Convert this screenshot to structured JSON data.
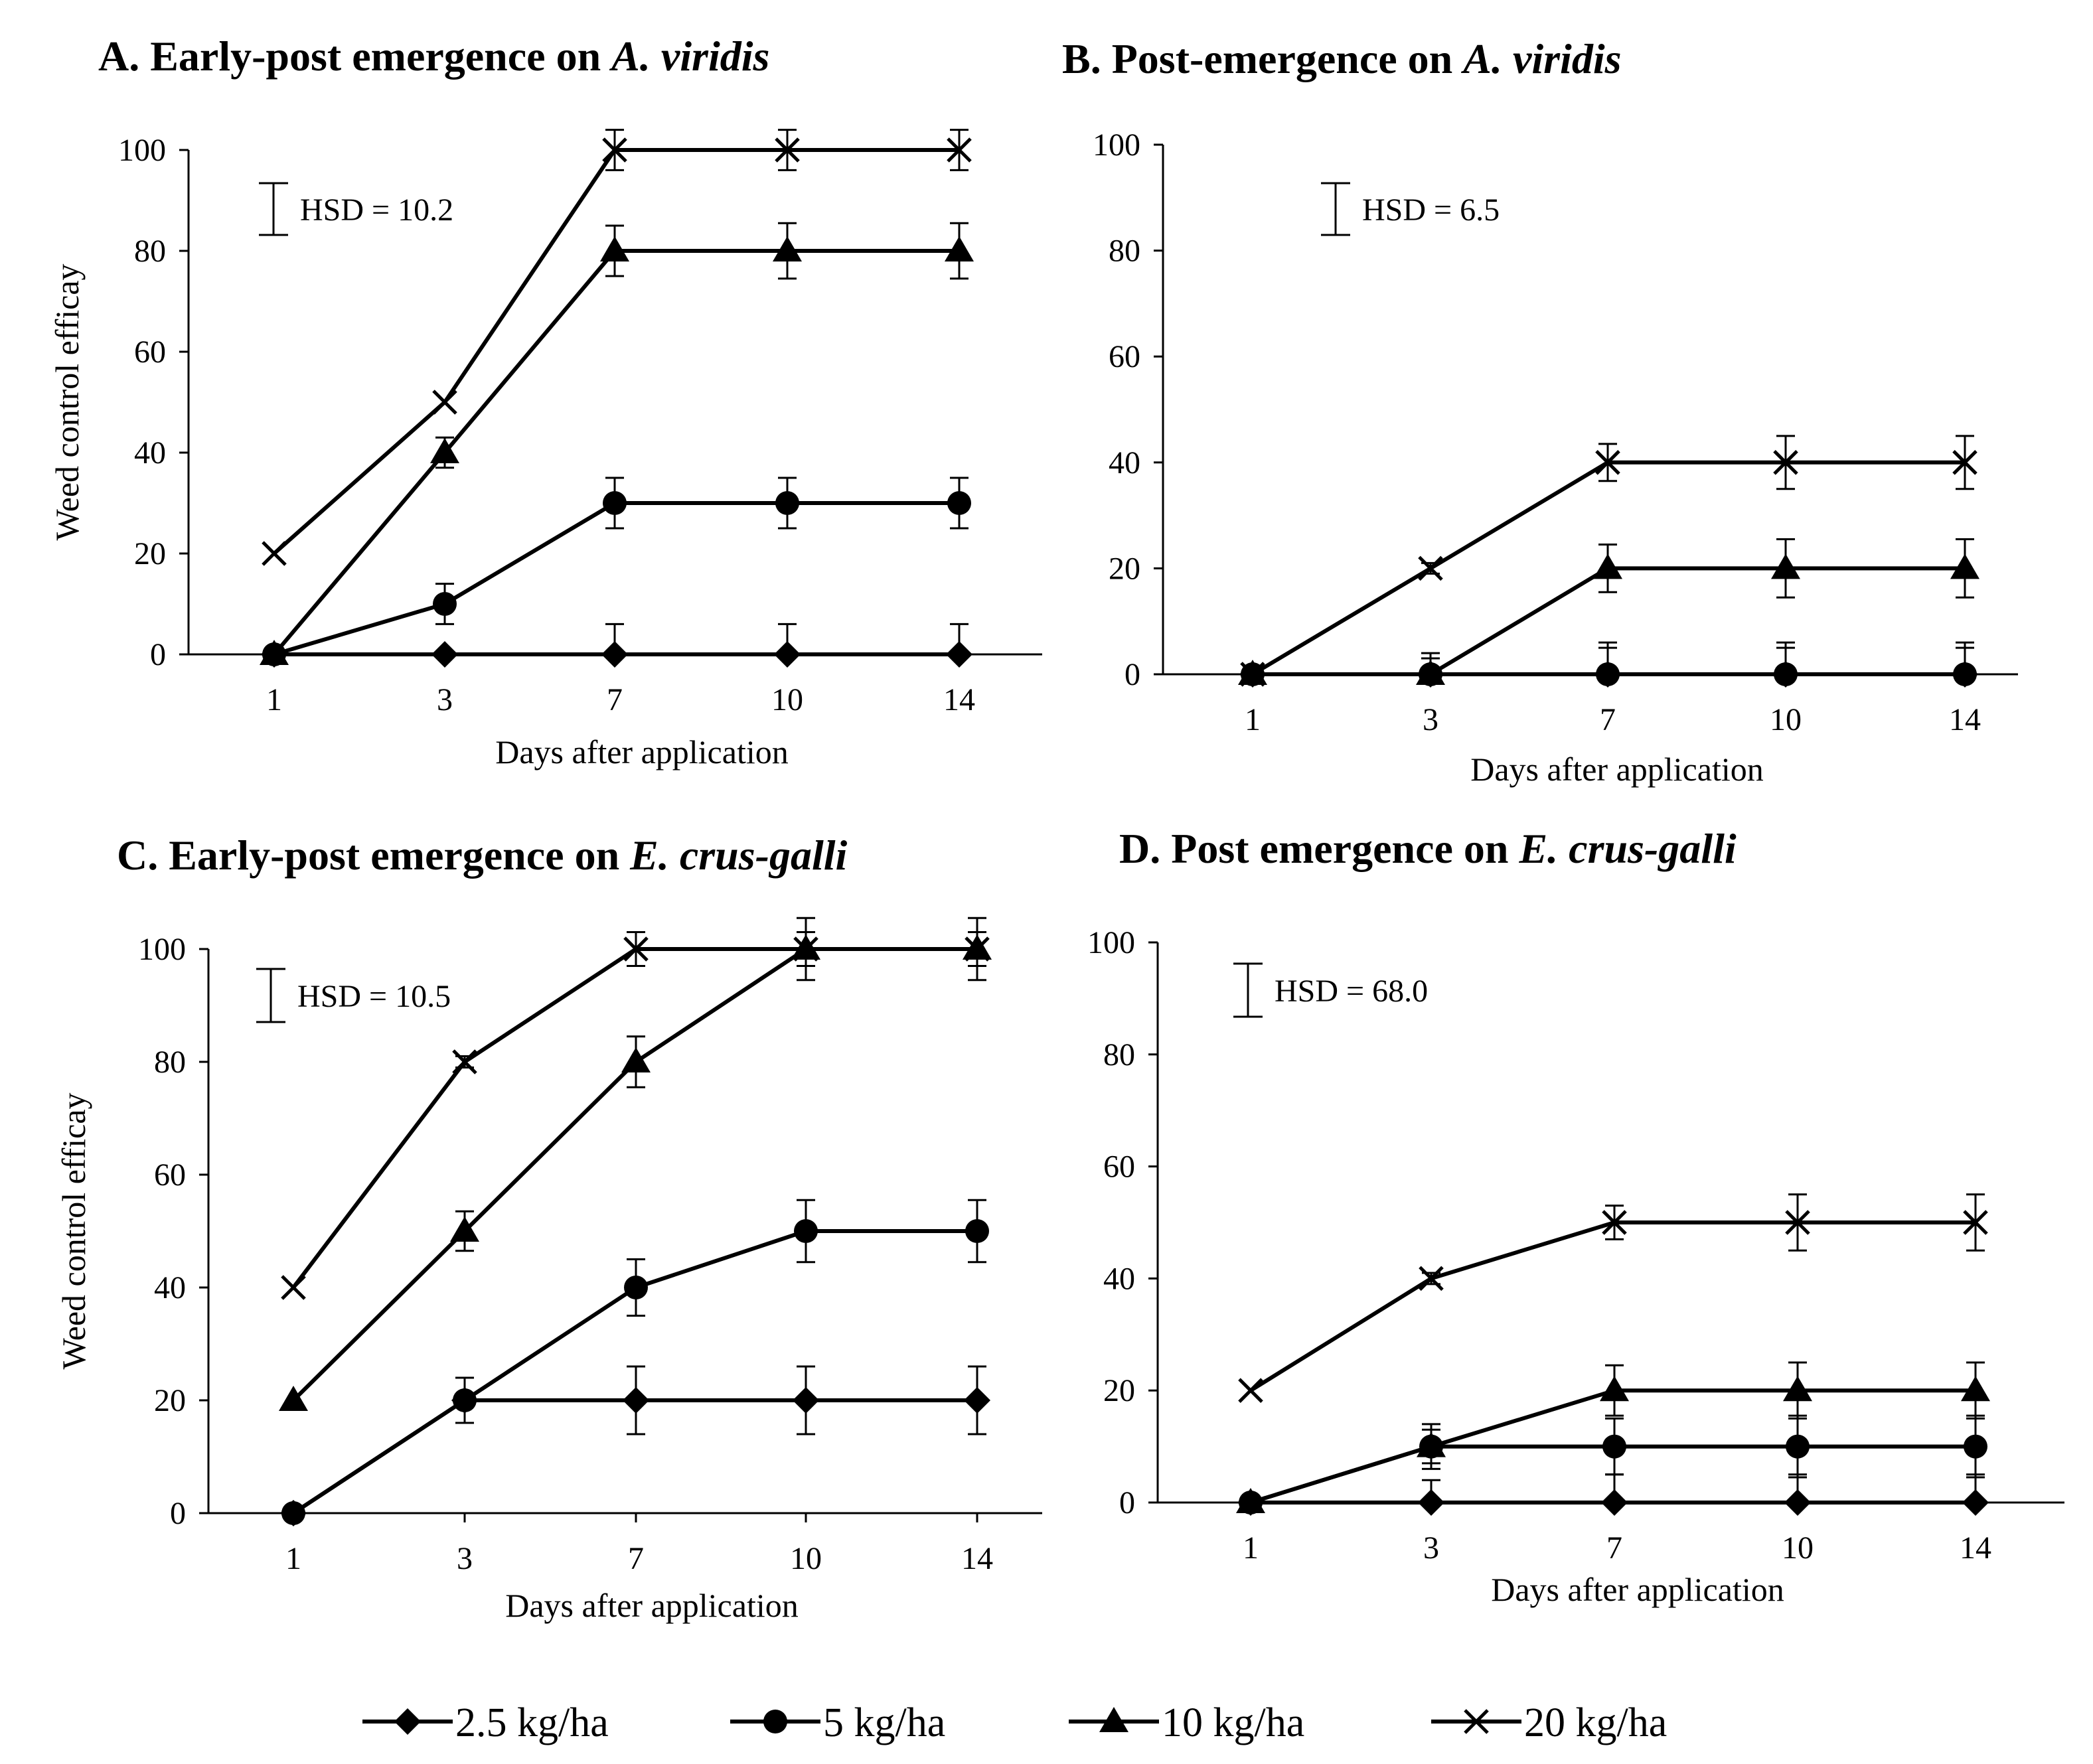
{
  "legend": [
    "2.5 kg/ha",
    "5 kg/ha",
    "10 kg/ha",
    "20 kg/ha"
  ],
  "chart_data": [
    {
      "type": "line",
      "title_prefix": "A. Early-post emergence on",
      "title_species": "A. viridis",
      "xlabel": "Days after application",
      "ylabel": "Weed control efficay",
      "categories": [
        "1",
        "3",
        "7",
        "10",
        "14"
      ],
      "ylim": [
        0,
        100
      ],
      "yticks": [
        "0",
        "20",
        "40",
        "60",
        "80",
        "100"
      ],
      "hsd": "HSD = 10.2",
      "series": [
        {
          "name": "2.5 kg/ha",
          "marker": "diamond",
          "values": [
            0,
            0,
            0,
            0,
            0
          ],
          "errors": [
            null,
            null,
            6,
            6,
            6
          ]
        },
        {
          "name": "5 kg/ha",
          "marker": "circle",
          "values": [
            0,
            10,
            30,
            30,
            30
          ],
          "errors": [
            null,
            4,
            5,
            5,
            5
          ]
        },
        {
          "name": "10 kg/ha",
          "marker": "triangle",
          "values": [
            0,
            40,
            80,
            80,
            80
          ],
          "errors": [
            null,
            3,
            5,
            5.5,
            5.5
          ]
        },
        {
          "name": "20 kg/ha",
          "marker": "x",
          "values": [
            20,
            50,
            100,
            100,
            100
          ],
          "errors": [
            null,
            null,
            4,
            4,
            4
          ]
        }
      ]
    },
    {
      "type": "line",
      "title_prefix": "B. Post-emergence on",
      "title_species": "A. viridis",
      "xlabel": "Days after application",
      "ylabel": "",
      "categories": [
        "1",
        "3",
        "7",
        "10",
        "14"
      ],
      "ylim": [
        0,
        100
      ],
      "yticks": [
        "0",
        "20",
        "40",
        "60",
        "80",
        "100"
      ],
      "hsd": "HSD = 6.5",
      "series": [
        {
          "name": "2.5 kg/ha",
          "marker": "diamond",
          "values": [
            0,
            0,
            0,
            0,
            0
          ],
          "errors": [
            null,
            4,
            6,
            6,
            6
          ]
        },
        {
          "name": "5 kg/ha",
          "marker": "circle",
          "values": [
            0,
            0,
            0,
            0,
            0
          ],
          "errors": [
            null,
            3,
            5,
            5,
            5
          ]
        },
        {
          "name": "10 kg/ha",
          "marker": "triangle",
          "values": [
            0,
            0,
            20,
            20,
            20
          ],
          "errors": [
            null,
            null,
            4.5,
            5.5,
            5.5
          ]
        },
        {
          "name": "20 kg/ha",
          "marker": "x",
          "values": [
            0,
            20,
            40,
            40,
            40
          ],
          "errors": [
            null,
            1,
            3.5,
            5,
            5
          ]
        }
      ]
    },
    {
      "type": "line",
      "title_prefix": "C. Early-post emergence on",
      "title_species": "E. crus-galli",
      "xlabel": "Days after application",
      "ylabel": "Weed control efficay",
      "categories": [
        "1",
        "3",
        "7",
        "10",
        "14"
      ],
      "ylim": [
        0,
        100
      ],
      "yticks": [
        "0",
        "20",
        "40",
        "60",
        "80",
        "100"
      ],
      "hsd": "HSD = 10.5",
      "series": [
        {
          "name": "2.5 kg/ha",
          "marker": "diamond",
          "values": [
            0,
            20,
            20,
            20,
            20
          ],
          "errors": [
            null,
            4,
            6,
            6,
            6
          ]
        },
        {
          "name": "5 kg/ha",
          "marker": "circle",
          "values": [
            0,
            20,
            40,
            50,
            50
          ],
          "errors": [
            null,
            4,
            5,
            5.5,
            5.5
          ]
        },
        {
          "name": "10 kg/ha",
          "marker": "triangle",
          "values": [
            20,
            50,
            80,
            100,
            100
          ],
          "errors": [
            null,
            3.5,
            4.5,
            5.5,
            5.5
          ]
        },
        {
          "name": "20 kg/ha",
          "marker": "x",
          "values": [
            40,
            80,
            100,
            100,
            100
          ],
          "errors": [
            null,
            1,
            3,
            3,
            3
          ]
        }
      ]
    },
    {
      "type": "line",
      "title_prefix": "D. Post emergence on",
      "title_species": "E. crus-galli",
      "xlabel": "Days after application",
      "ylabel": "",
      "categories": [
        "1",
        "3",
        "7",
        "10",
        "14"
      ],
      "ylim": [
        0,
        100
      ],
      "yticks": [
        "0",
        "20",
        "40",
        "60",
        "80",
        "100"
      ],
      "hsd": "HSD = 68.0",
      "series": [
        {
          "name": "2.5 kg/ha",
          "marker": "diamond",
          "values": [
            0,
            0,
            0,
            0,
            0
          ],
          "errors": [
            null,
            4,
            5,
            5,
            5
          ]
        },
        {
          "name": "5 kg/ha",
          "marker": "circle",
          "values": [
            0,
            10,
            10,
            10,
            10
          ],
          "errors": [
            null,
            4,
            5,
            5.5,
            5.5
          ]
        },
        {
          "name": "10 kg/ha",
          "marker": "triangle",
          "values": [
            0,
            10,
            20,
            20,
            20
          ],
          "errors": [
            null,
            3,
            4.5,
            5,
            5
          ]
        },
        {
          "name": "20 kg/ha",
          "marker": "x",
          "values": [
            20,
            40,
            50,
            50,
            50
          ],
          "errors": [
            null,
            1,
            3,
            5,
            5
          ]
        }
      ]
    }
  ]
}
